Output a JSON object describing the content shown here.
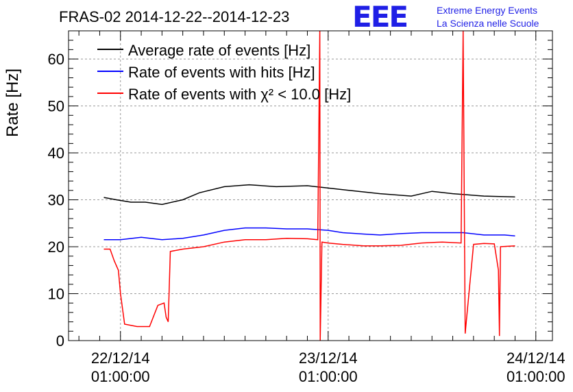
{
  "chart_data": {
    "type": "line",
    "title": "FRAS-02 2014-12-22--2014-12-23",
    "ylabel": "Rate [Hz]",
    "xlabel": "",
    "ylim": [
      0,
      66
    ],
    "xlim": [
      -0.25,
      2.08
    ],
    "yticks": [
      0,
      10,
      20,
      30,
      40,
      50,
      60
    ],
    "xticks": [
      {
        "value": 0,
        "date": "22/12/14",
        "time": "01:00:00"
      },
      {
        "value": 1,
        "date": "23/12/14",
        "time": "01:00:00"
      },
      {
        "value": 2,
        "date": "24/12/14",
        "time": "01:00:00"
      }
    ],
    "grid": true,
    "legend_position": "top-left",
    "series": [
      {
        "name": "Average rate of events [Hz]",
        "color": "#000000",
        "x": [
          -0.08,
          -0.02,
          0.05,
          0.12,
          0.2,
          0.3,
          0.38,
          0.5,
          0.62,
          0.75,
          0.9,
          1.0,
          1.1,
          1.25,
          1.4,
          1.5,
          1.6,
          1.75,
          1.9
        ],
        "y": [
          30.5,
          30.0,
          29.5,
          29.5,
          29.0,
          30.0,
          31.5,
          32.8,
          33.2,
          32.8,
          33.0,
          32.5,
          32.0,
          31.3,
          30.8,
          31.8,
          31.3,
          30.8,
          30.6
        ]
      },
      {
        "name": "Rate of events with hits [Hz]",
        "color": "#0000ff",
        "x": [
          -0.08,
          0.0,
          0.1,
          0.2,
          0.3,
          0.4,
          0.5,
          0.6,
          0.7,
          0.8,
          0.9,
          1.0,
          1.07,
          1.17,
          1.25,
          1.35,
          1.45,
          1.55,
          1.65,
          1.75,
          1.85,
          1.9
        ],
        "y": [
          21.5,
          21.5,
          22.0,
          21.5,
          21.8,
          22.5,
          23.5,
          24.0,
          24.0,
          23.8,
          23.8,
          23.5,
          23.0,
          22.7,
          22.5,
          22.8,
          23.0,
          23.0,
          23.0,
          22.5,
          22.5,
          22.3
        ]
      },
      {
        "name": "Rate of events with χ² < 10.0 [Hz]",
        "color": "#ff0000",
        "x": [
          -0.08,
          -0.05,
          -0.03,
          -0.01,
          0.0,
          0.02,
          0.08,
          0.12,
          0.14,
          0.18,
          0.21,
          0.22,
          0.23,
          0.24,
          0.3,
          0.4,
          0.5,
          0.6,
          0.7,
          0.8,
          0.9,
          0.95,
          0.96,
          0.962,
          0.97,
          1.0,
          1.07,
          1.17,
          1.25,
          1.35,
          1.45,
          1.55,
          1.64,
          1.65,
          1.66,
          1.7,
          1.75,
          1.8,
          1.82,
          1.825,
          1.83,
          1.9
        ],
        "y": [
          19.5,
          19.5,
          17.0,
          15.0,
          10.0,
          3.5,
          3.0,
          3.0,
          3.0,
          7.5,
          8.0,
          5.0,
          4.0,
          19.0,
          19.5,
          20.0,
          21.0,
          21.5,
          21.5,
          21.8,
          21.7,
          21.5,
          66,
          0,
          21.0,
          20.8,
          20.5,
          20.2,
          20.2,
          20.3,
          20.8,
          21.0,
          20.8,
          66,
          1.5,
          20.5,
          20.7,
          20.6,
          15.0,
          1.0,
          20.0,
          20.2
        ]
      }
    ]
  },
  "logo": {
    "text": "EEE",
    "line1": "Extreme Energy Events",
    "line2": "La Scienza nelle Scuole"
  }
}
